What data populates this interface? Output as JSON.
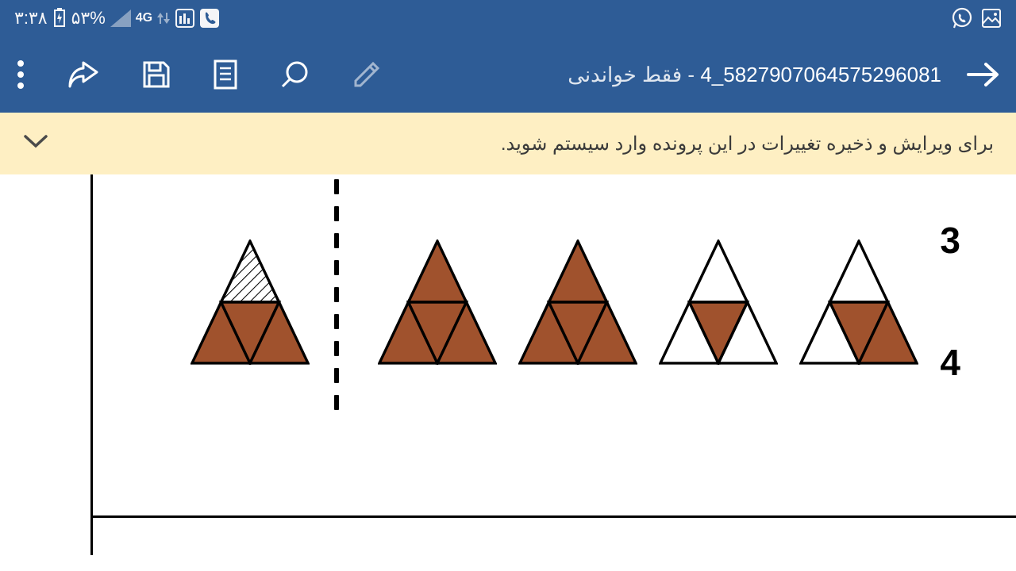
{
  "statusBar": {
    "time": "۳:۳۸",
    "batteryPct": "۵۳%",
    "netLabel": "4G",
    "bg": "#2e5c96",
    "fg": "#f5f5f7"
  },
  "toolbar": {
    "bg": "#2e5c96",
    "docName": "5827907064575296081_4",
    "readOnlySuffix": " - فقط خواندنی"
  },
  "notice": {
    "bg": "#feefc3",
    "text": "برای ویرایش و ذخیره تغییرات در این پرونده وارد سیستم شوید."
  },
  "content": {
    "topLabel": "3",
    "bottomLabel": "4",
    "fillColor": "#a0522d",
    "strokeColor": "#000000",
    "triangles": [
      {
        "id": "t1",
        "top": "hatch",
        "left": "fill",
        "mid": "fill",
        "right": "fill"
      },
      {
        "sep": true
      },
      {
        "id": "t2",
        "top": "fill",
        "left": "fill",
        "mid": "fill",
        "right": "fill"
      },
      {
        "id": "t3",
        "top": "fill",
        "left": "fill",
        "mid": "fill",
        "right": "fill"
      },
      {
        "id": "t4",
        "top": "empty",
        "left": "empty",
        "mid": "fill",
        "right": "empty"
      },
      {
        "id": "t5",
        "top": "empty",
        "left": "empty",
        "mid": "fill",
        "right": "fill"
      }
    ]
  }
}
